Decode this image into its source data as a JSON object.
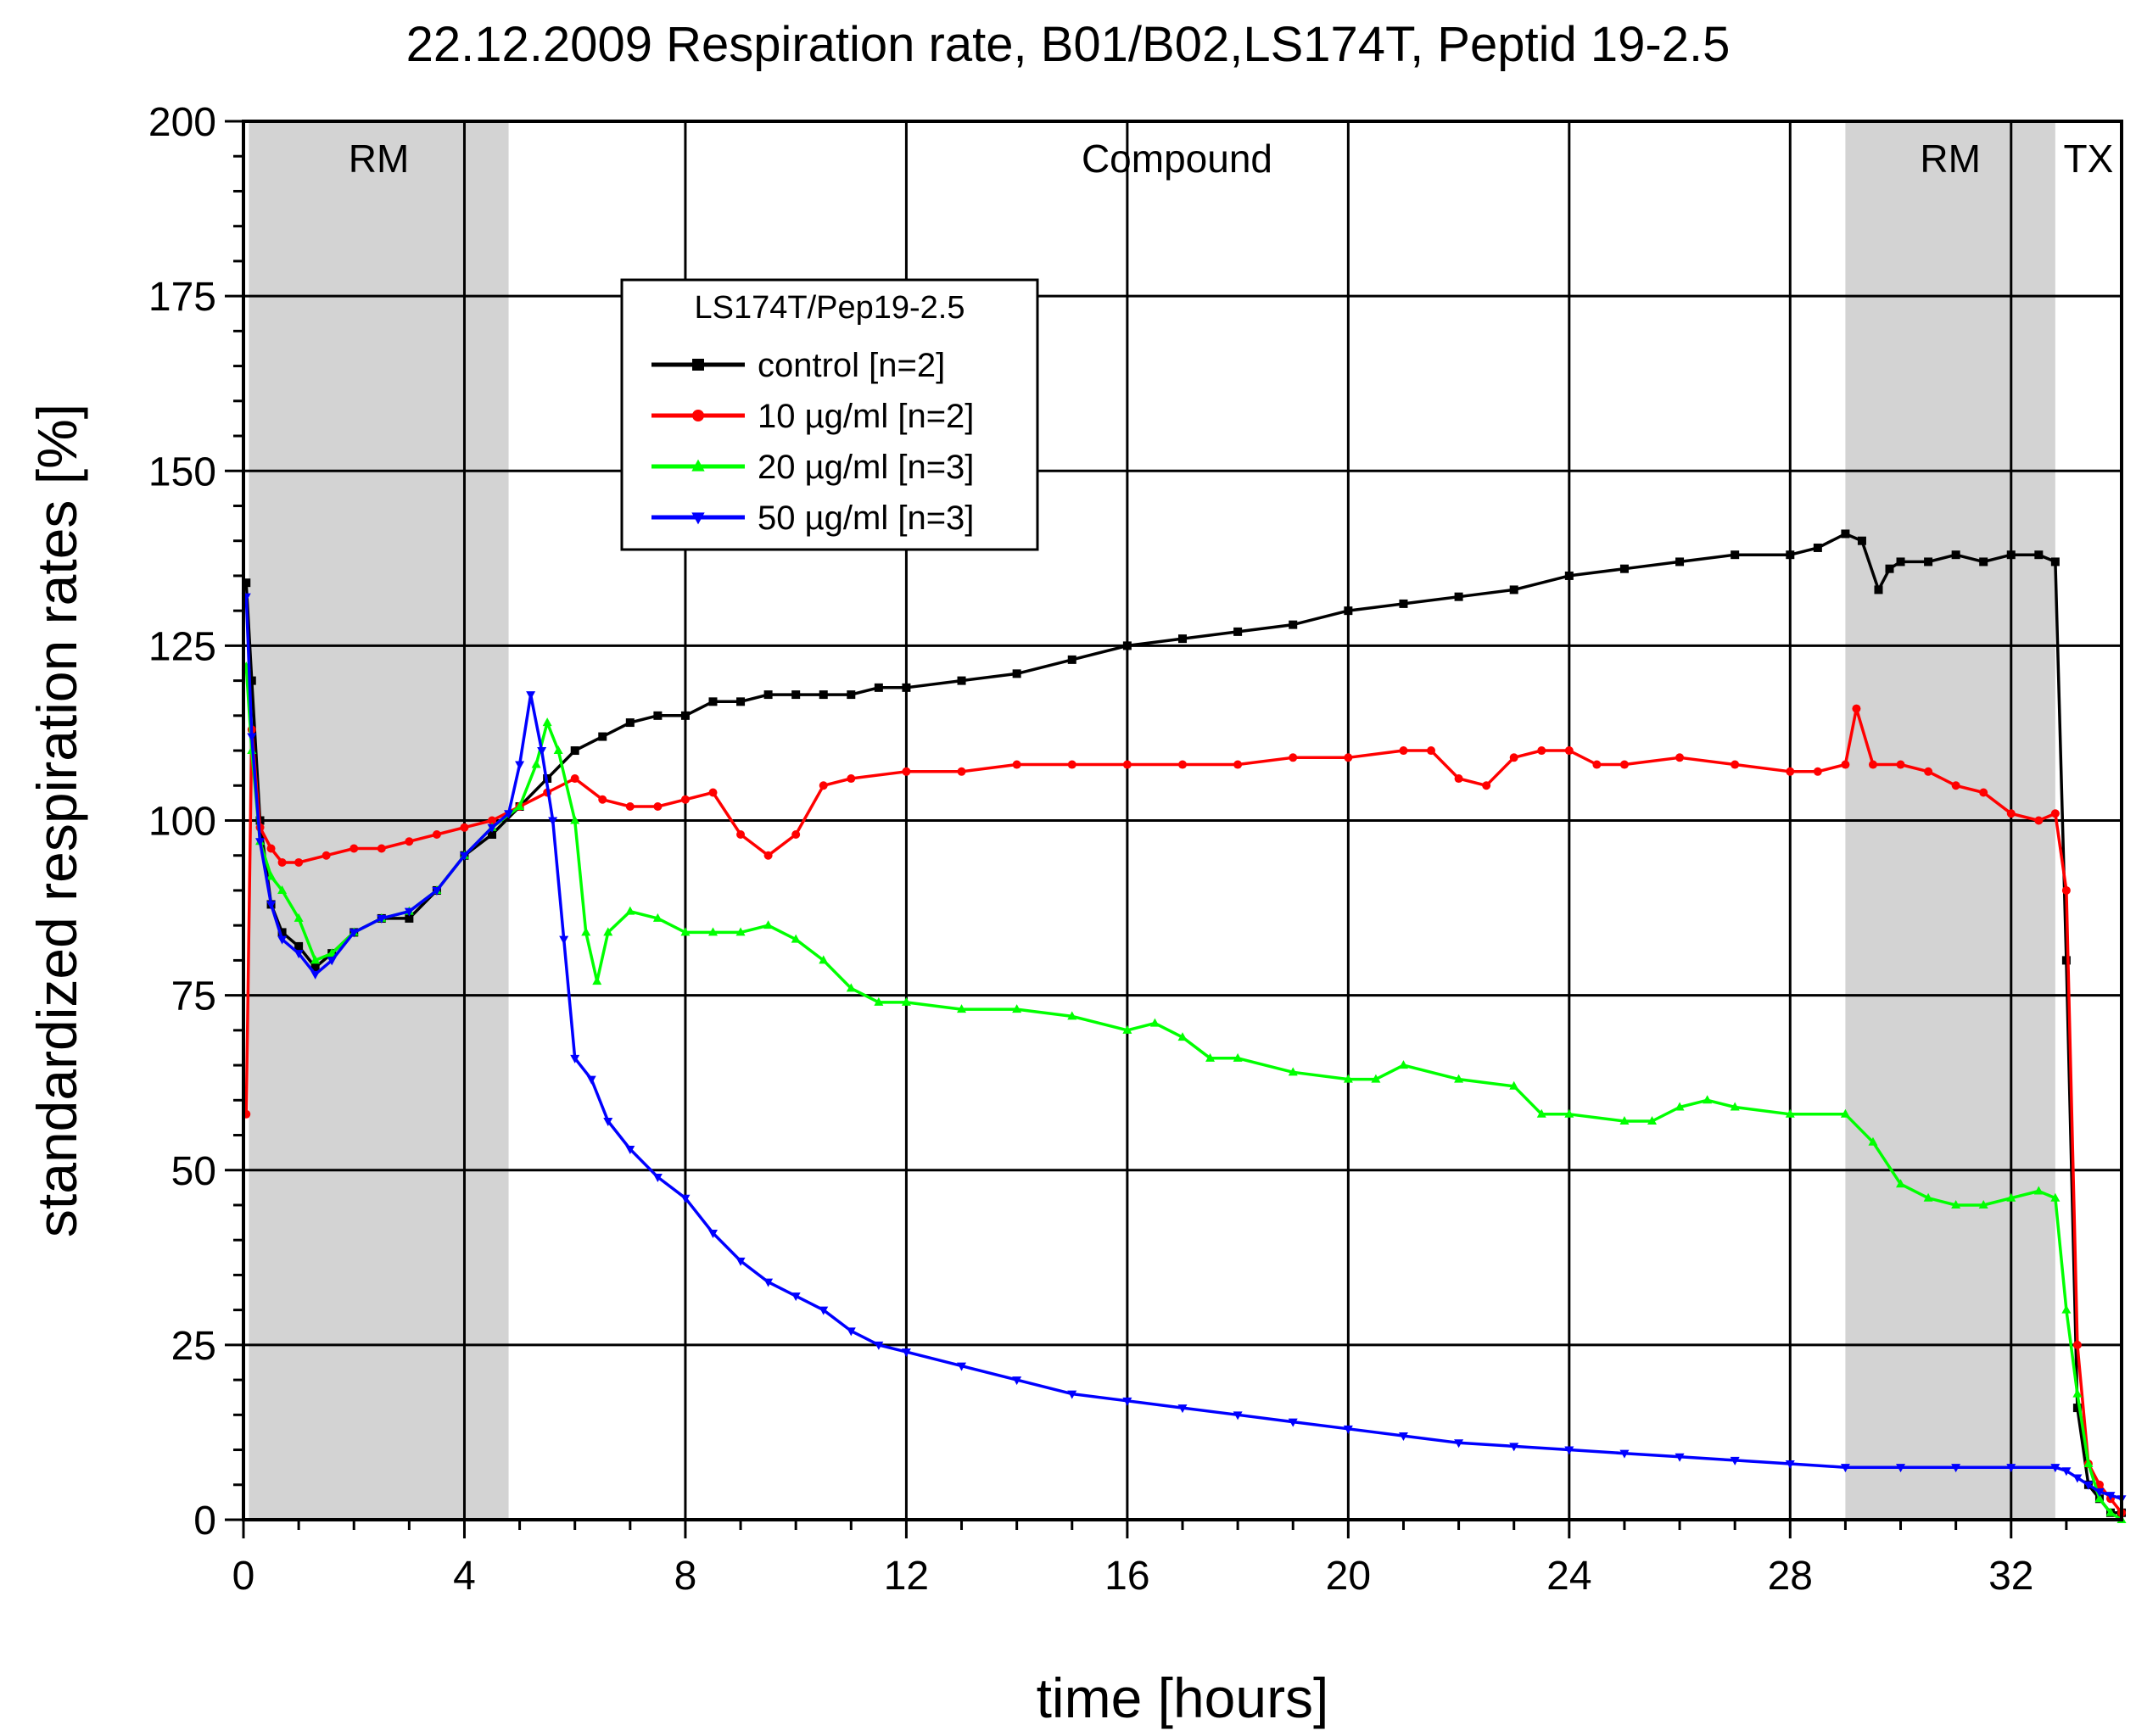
{
  "chart_data": {
    "type": "line",
    "title": "22.12.2009 Respiration rate, B01/B02,LS174T, Peptid 19-2.5",
    "xlabel": "time [hours]",
    "ylabel": "standardized respiration rates [%]",
    "xlim": [
      0,
      34
    ],
    "ylim": [
      0,
      200
    ],
    "xticks": [
      0,
      4,
      8,
      12,
      16,
      20,
      24,
      28,
      32
    ],
    "yticks": [
      0,
      25,
      50,
      75,
      100,
      125,
      150,
      175,
      200
    ],
    "grid": true,
    "regions": [
      {
        "label": "RM",
        "x0": 0.1,
        "x1": 4.8,
        "shaded": true
      },
      {
        "label": "Compound",
        "x0": 4.8,
        "x1": 29.0,
        "shaded": false
      },
      {
        "label": "RM",
        "x0": 29.0,
        "x1": 32.8,
        "shaded": true
      },
      {
        "label": "TX",
        "x0": 32.8,
        "x1": 34.0,
        "shaded": false
      }
    ],
    "region_colors": {
      "shade": "#d3d3d3"
    },
    "legend": {
      "title": "LS174T/Pep19-2.5",
      "position": "upper-left"
    },
    "series": [
      {
        "name": "control [n=2]",
        "color": "#000000",
        "marker": "square",
        "x": [
          0.05,
          0.15,
          0.3,
          0.5,
          0.7,
          1.0,
          1.3,
          1.6,
          2.0,
          2.5,
          3.0,
          3.5,
          4.0,
          4.5,
          5.0,
          5.5,
          6.0,
          6.5,
          7.0,
          7.5,
          8.0,
          8.5,
          9.0,
          9.5,
          10.0,
          10.5,
          11.0,
          11.5,
          12.0,
          13.0,
          14.0,
          15.0,
          16.0,
          17.0,
          18.0,
          19.0,
          20.0,
          21.0,
          22.0,
          23.0,
          24.0,
          25.0,
          26.0,
          27.0,
          28.0,
          28.5,
          29.0,
          29.3,
          29.6,
          29.8,
          30.0,
          30.5,
          31.0,
          31.5,
          32.0,
          32.5,
          32.8,
          33.0,
          33.2,
          33.4,
          33.6,
          33.8,
          34.0
        ],
        "y": [
          134,
          120,
          100,
          88,
          84,
          82,
          79,
          81,
          84,
          86,
          86,
          90,
          95,
          98,
          102,
          106,
          110,
          112,
          114,
          115,
          115,
          117,
          117,
          118,
          118,
          118,
          118,
          119,
          119,
          120,
          121,
          123,
          125,
          126,
          127,
          128,
          130,
          131,
          132,
          133,
          135,
          136,
          137,
          138,
          138,
          139,
          141,
          140,
          133,
          136,
          137,
          137,
          138,
          137,
          138,
          138,
          137,
          80,
          16,
          5,
          3,
          1,
          1
        ]
      },
      {
        "name": "10 µg/ml [n=2]",
        "color": "#ff0000",
        "marker": "circle",
        "x": [
          0.05,
          0.15,
          0.3,
          0.5,
          0.7,
          1.0,
          1.5,
          2.0,
          2.5,
          3.0,
          3.5,
          4.0,
          4.5,
          5.0,
          5.5,
          6.0,
          6.5,
          7.0,
          7.5,
          8.0,
          8.5,
          9.0,
          9.5,
          10.0,
          10.5,
          11.0,
          12.0,
          13.0,
          14.0,
          15.0,
          16.0,
          17.0,
          18.0,
          19.0,
          20.0,
          21.0,
          21.5,
          22.0,
          22.5,
          23.0,
          23.5,
          24.0,
          24.5,
          25.0,
          26.0,
          27.0,
          28.0,
          28.5,
          29.0,
          29.2,
          29.5,
          30.0,
          30.5,
          31.0,
          31.5,
          32.0,
          32.5,
          32.8,
          33.0,
          33.2,
          33.4,
          33.6,
          33.8,
          34.0
        ],
        "y": [
          58,
          113,
          99,
          96,
          94,
          94,
          95,
          96,
          96,
          97,
          98,
          99,
          100,
          102,
          104,
          106,
          103,
          102,
          102,
          103,
          104,
          98,
          95,
          98,
          105,
          106,
          107,
          107,
          108,
          108,
          108,
          108,
          108,
          109,
          109,
          110,
          110,
          106,
          105,
          109,
          110,
          110,
          108,
          108,
          109,
          108,
          107,
          107,
          108,
          116,
          108,
          108,
          107,
          105,
          104,
          101,
          100,
          101,
          90,
          25,
          8,
          5,
          3,
          1
        ]
      },
      {
        "name": "20 µg/ml [n=3]",
        "color": "#00ff00",
        "marker": "triangle-up",
        "x": [
          0.05,
          0.15,
          0.3,
          0.5,
          0.7,
          1.0,
          1.3,
          1.6,
          2.0,
          2.5,
          3.0,
          3.5,
          4.0,
          4.5,
          5.0,
          5.3,
          5.5,
          5.7,
          6.0,
          6.2,
          6.4,
          6.6,
          7.0,
          7.5,
          8.0,
          8.5,
          9.0,
          9.5,
          10.0,
          10.5,
          11.0,
          11.5,
          12.0,
          13.0,
          14.0,
          15.0,
          16.0,
          16.5,
          17.0,
          17.5,
          18.0,
          19.0,
          20.0,
          20.5,
          21.0,
          22.0,
          23.0,
          23.5,
          24.0,
          25.0,
          25.5,
          26.0,
          26.5,
          27.0,
          28.0,
          29.0,
          29.5,
          30.0,
          30.5,
          31.0,
          31.5,
          32.0,
          32.5,
          32.8,
          33.0,
          33.2,
          33.4,
          33.6,
          33.8,
          34.0
        ],
        "y": [
          122,
          110,
          97,
          92,
          90,
          86,
          80,
          81,
          84,
          86,
          87,
          90,
          95,
          99,
          102,
          108,
          114,
          110,
          100,
          84,
          77,
          84,
          87,
          86,
          84,
          84,
          84,
          85,
          83,
          80,
          76,
          74,
          74,
          73,
          73,
          72,
          70,
          71,
          69,
          66,
          66,
          64,
          63,
          63,
          65,
          63,
          62,
          58,
          58,
          57,
          57,
          59,
          60,
          59,
          58,
          58,
          54,
          48,
          46,
          45,
          45,
          46,
          47,
          46,
          30,
          18,
          8,
          3,
          1,
          0
        ]
      },
      {
        "name": "50 µg/ml [n=3]",
        "color": "#0000ff",
        "marker": "triangle-down",
        "x": [
          0.05,
          0.15,
          0.3,
          0.5,
          0.7,
          1.0,
          1.3,
          1.6,
          2.0,
          2.5,
          3.0,
          3.5,
          4.0,
          4.5,
          4.8,
          5.0,
          5.2,
          5.4,
          5.6,
          5.8,
          6.0,
          6.3,
          6.6,
          7.0,
          7.5,
          8.0,
          8.5,
          9.0,
          9.5,
          10.0,
          10.5,
          11.0,
          11.5,
          12.0,
          13.0,
          14.0,
          15.0,
          16.0,
          17.0,
          18.0,
          19.0,
          20.0,
          21.0,
          22.0,
          23.0,
          24.0,
          25.0,
          26.0,
          27.0,
          28.0,
          29.0,
          30.0,
          31.0,
          32.0,
          32.8,
          33.0,
          33.2,
          33.4,
          33.6,
          33.8,
          34.0
        ],
        "y": [
          132,
          112,
          97,
          88,
          83,
          81,
          78,
          80,
          84,
          86,
          87,
          90,
          95,
          99,
          101,
          108,
          118,
          110,
          100,
          83,
          66,
          63,
          57,
          53,
          49,
          46,
          41,
          37,
          34,
          32,
          30,
          27,
          25,
          24,
          22,
          20,
          18,
          17,
          16,
          15,
          14,
          13,
          12,
          11,
          10.5,
          10,
          9.5,
          9,
          8.5,
          8,
          7.5,
          7.5,
          7.5,
          7.5,
          7.5,
          7,
          6,
          5,
          4,
          3.5,
          3
        ]
      }
    ]
  }
}
